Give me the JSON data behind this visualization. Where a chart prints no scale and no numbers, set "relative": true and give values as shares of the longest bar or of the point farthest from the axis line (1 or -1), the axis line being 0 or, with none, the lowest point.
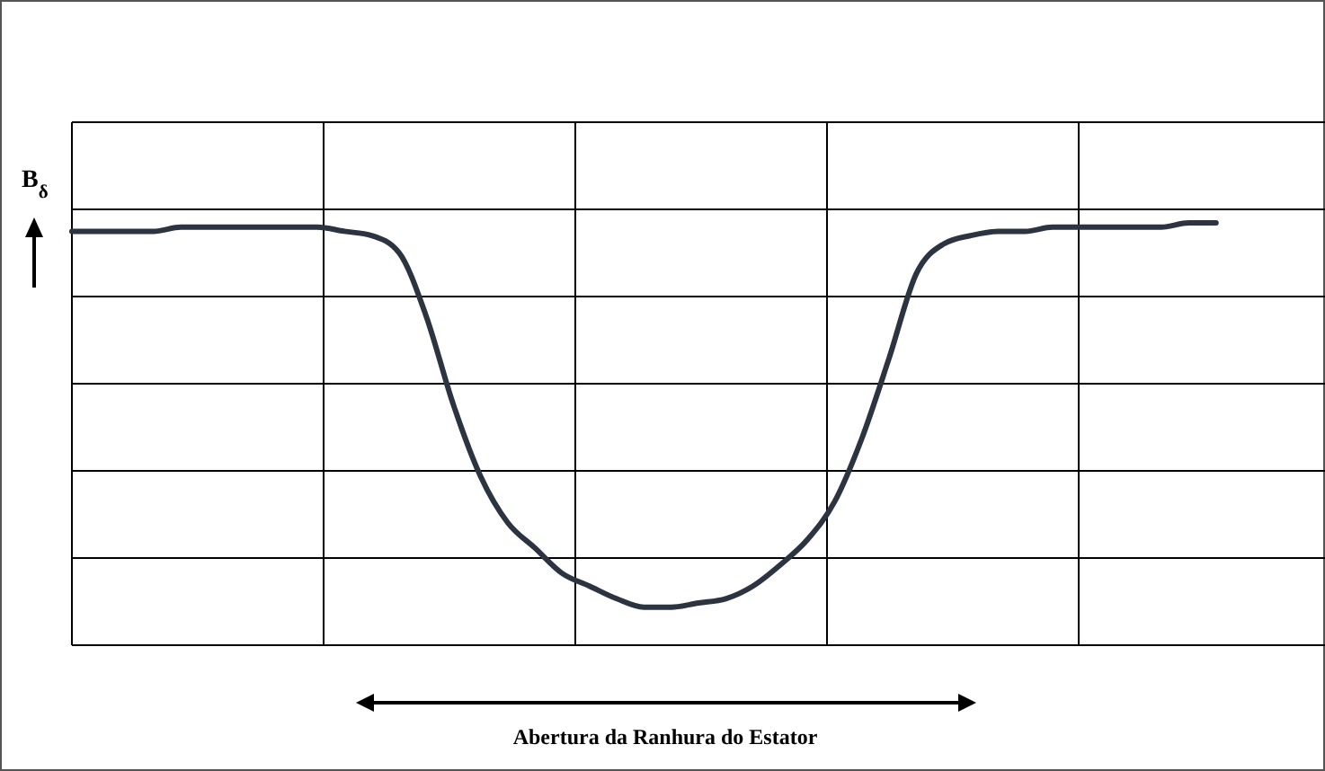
{
  "chart_data": {
    "type": "line",
    "relative": true,
    "ylabel": "B$_{δ}$",
    "annotations": [
      "Abertura da Ranhura do Estator"
    ],
    "grid": true,
    "line_style": "solid",
    "marker": "none",
    "categories": [
      null,
      null,
      null,
      null,
      null,
      null,
      null,
      null,
      null,
      null,
      null,
      null,
      null,
      null,
      null,
      null,
      null,
      null,
      null,
      null,
      null,
      null,
      null,
      null,
      null,
      null,
      null,
      null,
      null,
      null,
      null,
      null,
      null,
      null,
      null,
      null,
      null,
      null,
      null,
      null,
      null,
      null,
      null,
      null,
      null,
      null,
      null
    ],
    "series": [
      {
        "color": "#2b3440",
        "values": [
          0.98,
          0.98,
          0.98,
          0.98,
          0.99,
          0.99,
          0.99,
          0.99,
          0.99,
          0.99,
          0.98,
          0.97,
          0.93,
          0.78,
          0.57,
          0.4,
          0.29,
          0.23,
          0.17,
          0.14,
          0.11,
          0.09,
          0.09,
          0.1,
          0.11,
          0.14,
          0.19,
          0.25,
          0.34,
          0.49,
          0.68,
          0.88,
          0.95,
          0.97,
          0.98,
          0.98,
          0.99,
          0.99,
          0.99,
          0.99,
          0.99,
          1,
          1,
          null,
          null,
          null,
          null
        ]
      }
    ]
  }
}
